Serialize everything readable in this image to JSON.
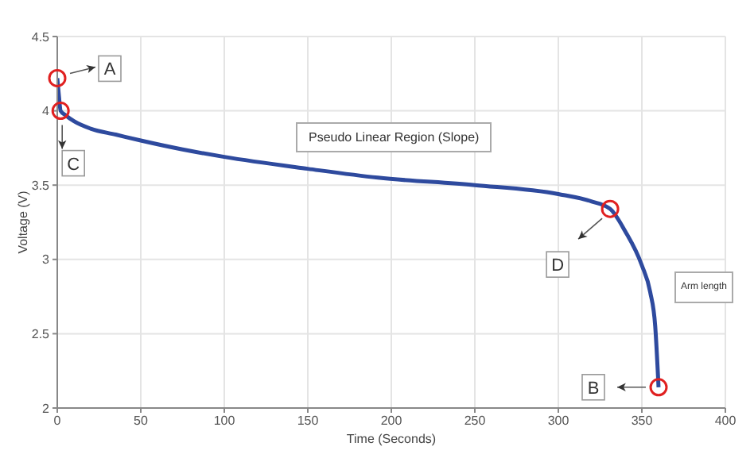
{
  "chart_data": {
    "type": "line",
    "xlabel": "Time (Seconds)",
    "ylabel": "Voltage (V)",
    "x": [
      0,
      1,
      2,
      5,
      10,
      20,
      35,
      50,
      75,
      100,
      150,
      192,
      250,
      300,
      320,
      331,
      340,
      350,
      355,
      358,
      360
    ],
    "series": [
      {
        "color": "#2e4a9e",
        "values": [
          4.22,
          4.1,
          4.0,
          3.97,
          3.93,
          3.88,
          3.84,
          3.8,
          3.74,
          3.69,
          3.61,
          3.55,
          3.5,
          3.44,
          3.39,
          3.34,
          3.19,
          2.96,
          2.78,
          2.55,
          2.14
        ]
      }
    ],
    "xlim": [
      0,
      400
    ],
    "xticks": [
      0,
      50,
      100,
      150,
      200,
      250,
      300,
      350,
      400
    ],
    "ylim": [
      2,
      4.5
    ],
    "yticks": [
      2,
      2.5,
      3,
      3.5,
      4,
      4.5
    ],
    "grid": true,
    "marker": "none",
    "line_style": "solid",
    "annotations": [
      {
        "text": "A",
        "x": 0,
        "y": 4.22
      },
      {
        "text": "B",
        "x": 360,
        "y": 2.14
      },
      {
        "text": "C",
        "x": 2,
        "y": 4.0
      },
      {
        "text": "D",
        "x": 331,
        "y": 3.34
      },
      "Pseudo Linear Region (Slope)",
      "Arm length"
    ]
  }
}
